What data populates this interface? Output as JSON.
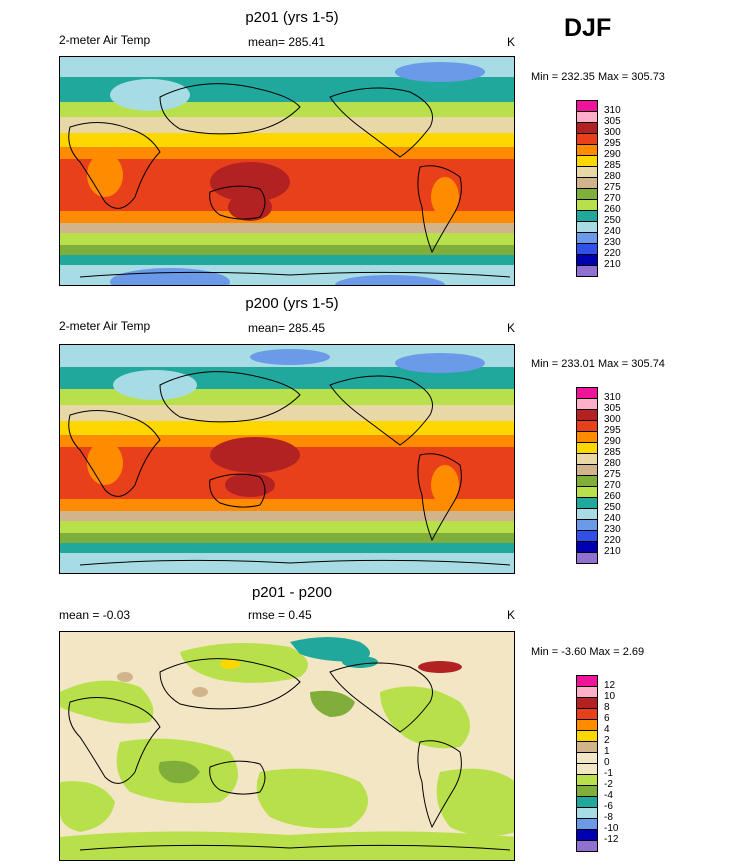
{
  "season": "DJF",
  "panels": [
    {
      "title": "p201 (yrs 1-5)",
      "left_label": "2-meter Air Temp",
      "mean_label": "mean= 285.41",
      "units": "K",
      "minmax": "Min = 232.35 Max = 305.73"
    },
    {
      "title": "p200 (yrs 1-5)",
      "left_label": "2-meter Air Temp",
      "mean_label": "mean= 285.45",
      "units": "K",
      "minmax": "Min = 233.01 Max = 305.74"
    },
    {
      "title": "p201 - p200",
      "left_label": "mean =  -0.03",
      "mean_label": "rmse =   0.45",
      "units": "K",
      "minmax": "Min =  -3.60 Max =   2.69"
    }
  ],
  "legend_temp": {
    "labels": [
      "310",
      "305",
      "300",
      "295",
      "290",
      "285",
      "280",
      "275",
      "270",
      "260",
      "250",
      "240",
      "230",
      "220",
      "210"
    ],
    "colors": [
      "#f0149a",
      "#ffb0c8",
      "#b22222",
      "#e8401a",
      "#ff8c00",
      "#ffd700",
      "#e8d8a8",
      "#d2b48c",
      "#7fae3a",
      "#b8e04a",
      "#20a89c",
      "#a8dce4",
      "#6a9ae8",
      "#3050e8",
      "#0000b0",
      "#9070d0"
    ]
  },
  "legend_diff": {
    "labels": [
      "12",
      "10",
      "8",
      "6",
      "4",
      "2",
      "1",
      "0",
      "-1",
      "-2",
      "-4",
      "-6",
      "-8",
      "-10",
      "-12"
    ],
    "colors": [
      "#f0149a",
      "#ffb0c8",
      "#b22222",
      "#e8401a",
      "#ff8c00",
      "#ffd700",
      "#d2b48c",
      "#f2e6c4",
      "#f2e6c4",
      "#b8e04a",
      "#7fae3a",
      "#20a89c",
      "#a8dce4",
      "#6a9ae8",
      "#0000b0",
      "#9070d0"
    ]
  }
}
